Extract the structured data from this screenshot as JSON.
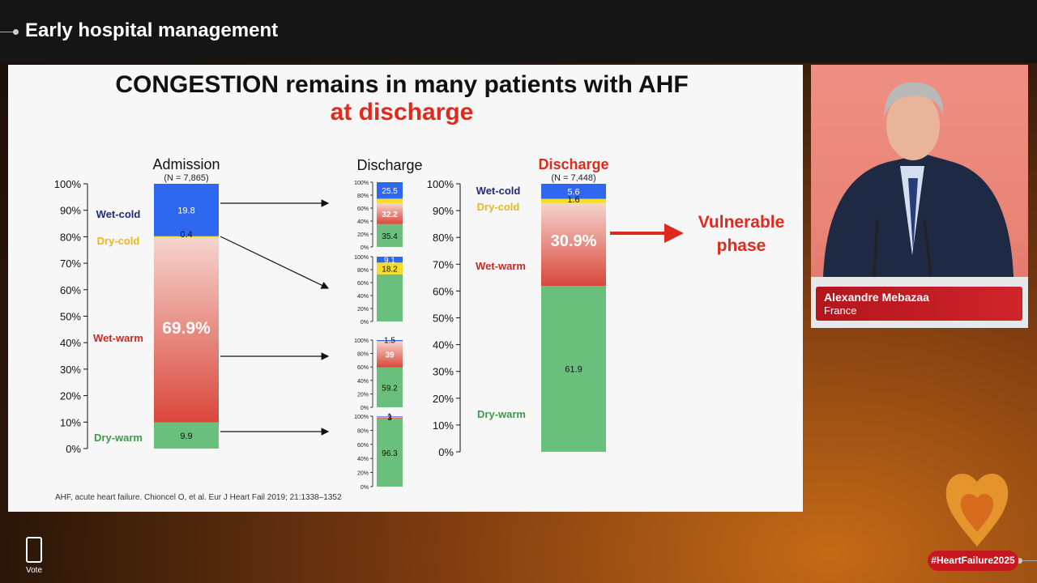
{
  "session": {
    "title": "Early hospital management"
  },
  "slide": {
    "title": "CONGESTION remains in many patients with AHF",
    "subtitle": "at discharge",
    "citation": "AHF, acute heart failure. Chioncel O, et al. Eur J Heart Fail 2019; 21:1338–1352",
    "callout": [
      "Vulnerable",
      "phase"
    ]
  },
  "chart_data": [
    {
      "type": "bar",
      "title": "Admission",
      "subtitle": "(N = 7,865)",
      "yticks": [
        "0%",
        "10%",
        "20%",
        "30%",
        "40%",
        "50%",
        "60%",
        "70%",
        "80%",
        "90%",
        "100%"
      ],
      "segments": [
        {
          "name": "Dry-warm",
          "value": 9.9,
          "label": "9.9"
        },
        {
          "name": "Wet-warm",
          "value": 69.9,
          "label": "69.9%"
        },
        {
          "name": "Dry-cold",
          "value": 0.4,
          "label": "0.4"
        },
        {
          "name": "Wet-cold",
          "value": 19.8,
          "label": "19.8"
        }
      ],
      "category_labels": [
        "Wet-cold",
        "Dry-cold",
        "Wet-warm",
        "Dry-warm"
      ]
    },
    {
      "type": "bar",
      "title": "Discharge",
      "small_yticks": [
        "0%",
        "20%",
        "40%",
        "60%",
        "80%",
        "100%"
      ],
      "small_bars": [
        {
          "from": "Wet-cold",
          "segments": [
            {
              "name": "Dry-warm",
              "value": 35.4,
              "label": "35.4"
            },
            {
              "name": "Wet-warm",
              "value": 32.2,
              "label": "32.2"
            },
            {
              "name": "Dry-cold",
              "value": 6.9,
              "label": ""
            },
            {
              "name": "Wet-cold",
              "value": 25.5,
              "label": "25.5"
            }
          ]
        },
        {
          "from": "Dry-cold",
          "segments": [
            {
              "name": "Dry-warm",
              "value": 72.7,
              "label": ""
            },
            {
              "name": "Wet-warm",
              "value": 0,
              "label": ""
            },
            {
              "name": "Dry-cold",
              "value": 18.2,
              "label": "18.2"
            },
            {
              "name": "Wet-cold",
              "value": 9.1,
              "label": "9.1"
            }
          ]
        },
        {
          "from": "Wet-warm",
          "segments": [
            {
              "name": "Dry-warm",
              "value": 59.2,
              "label": "59.2"
            },
            {
              "name": "Wet-warm",
              "value": 39,
              "label": "39"
            },
            {
              "name": "Dry-cold",
              "value": 0.3,
              "label": ""
            },
            {
              "name": "Wet-cold",
              "value": 1.5,
              "label": "1.5"
            }
          ]
        },
        {
          "from": "Dry-warm",
          "segments": [
            {
              "name": "Dry-warm",
              "value": 96.3,
              "label": "96.3"
            },
            {
              "name": "Wet-warm",
              "value": 3,
              "label": "3"
            },
            {
              "name": "Dry-cold",
              "value": 0,
              "label": ""
            },
            {
              "name": "Wet-cold",
              "value": 0.7,
              "label": "1"
            }
          ]
        }
      ]
    },
    {
      "type": "bar",
      "title": "Discharge",
      "subtitle": "(N = 7,448)",
      "yticks": [
        "0%",
        "10%",
        "20%",
        "30%",
        "40%",
        "50%",
        "60%",
        "70%",
        "80%",
        "90%",
        "100%"
      ],
      "segments": [
        {
          "name": "Dry-warm",
          "value": 61.9,
          "label": "61.9"
        },
        {
          "name": "Wet-warm",
          "value": 30.9,
          "label": "30.9%"
        },
        {
          "name": "Dry-cold",
          "value": 1.6,
          "label": "1.6"
        },
        {
          "name": "Wet-cold",
          "value": 5.6,
          "label": "5.6"
        }
      ],
      "category_labels": [
        "Wet-cold",
        "Dry-cold",
        "Wet-warm",
        "Dry-warm"
      ]
    }
  ],
  "colors": {
    "wet_cold": "#2f68f0",
    "dry_cold": "#f5dd2a",
    "wet_warm_top": "#f2c9c3",
    "wet_warm_bottom": "#d9473a",
    "dry_warm": "#6bbf7c",
    "label_wet_cold": "#1f2a7a",
    "label_dry_cold": "#e9b818",
    "label_wet_warm": "#cc2a20",
    "label_dry_warm": "#3f9a4f",
    "accent_red": "#e02a1e"
  },
  "speaker": {
    "name": "Alexandre Mebazaa",
    "country": "France"
  },
  "vote": {
    "label": "Vote"
  },
  "hashtag": "#HeartFailure2025"
}
